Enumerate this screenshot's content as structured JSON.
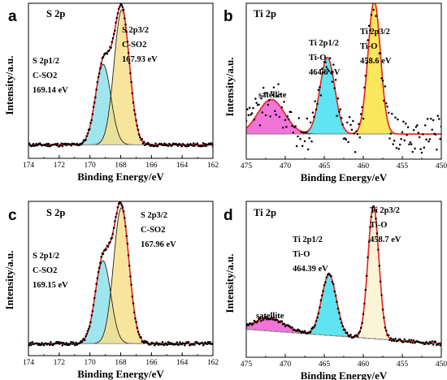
{
  "chart_data": [
    {
      "panel": "a",
      "type": "line",
      "title": "S 2p",
      "xlabel": "Binding Energy/eV",
      "ylabel": "Intensity/a.u.",
      "x_reversed": true,
      "xlim": [
        174,
        162
      ],
      "xticks": [
        "174",
        "172",
        "170",
        "168",
        "166",
        "164",
        "162"
      ],
      "background": 0.06,
      "peaks": [
        {
          "name": "S 2p1/2",
          "center": 169.14,
          "height": 0.56,
          "width": 0.5,
          "fill": "#8ee0ea",
          "labels": [
            "S 2p1/2",
            "C-SO2",
            "169.14 eV"
          ]
        },
        {
          "name": "S 2p3/2",
          "center": 167.93,
          "height": 0.94,
          "width": 0.5,
          "fill": "#f6e08c",
          "labels": [
            "S 2p3/2",
            "C-SO2",
            "167.93 eV"
          ]
        }
      ],
      "noise": 0.012
    },
    {
      "panel": "b",
      "type": "line",
      "title": "Ti 2p",
      "xlabel": "Binding Energy/eV",
      "ylabel": "Intensity/a.u.",
      "x_reversed": true,
      "xlim": [
        475,
        450
      ],
      "xticks": [
        "475",
        "470",
        "465",
        "460",
        "455",
        "450"
      ],
      "background": 0.14,
      "peaks": [
        {
          "name": "satellite",
          "center": 471.8,
          "height": 0.24,
          "width": 1.7,
          "fill": "#ee5cd2",
          "labels": [
            "satellite"
          ]
        },
        {
          "name": "Ti 2p1/2",
          "center": 464.6,
          "height": 0.53,
          "width": 0.95,
          "fill": "#43dff0",
          "labels": [
            "Ti 2p1/2",
            "Ti-O",
            "464.6 eV"
          ]
        },
        {
          "name": "Ti 2p3/2",
          "center": 458.6,
          "height": 0.92,
          "width": 0.8,
          "fill": "#f9e33f",
          "labels": [
            "Ti 2p3/2",
            "Ti-O",
            "458.6 eV"
          ]
        }
      ],
      "noise": 0.12
    },
    {
      "panel": "c",
      "type": "line",
      "title": "S 2p",
      "xlabel": "Binding Energy/eV",
      "ylabel": "Intensity/a.u.",
      "x_reversed": true,
      "xlim": [
        174,
        162
      ],
      "xticks": [
        "174",
        "172",
        "170",
        "168",
        "166",
        "164",
        "162"
      ],
      "background": 0.05,
      "peaks": [
        {
          "name": "S 2p1/2",
          "center": 169.15,
          "height": 0.58,
          "width": 0.5,
          "fill": "#8ee0ea",
          "labels": [
            "S 2p1/2",
            "C-SO2",
            "169.15 eV"
          ]
        },
        {
          "name": "S 2p3/2",
          "center": 167.96,
          "height": 0.95,
          "width": 0.5,
          "fill": "#f6e08c",
          "labels": [
            "S 2p3/2",
            "C-SO2",
            "167.96 eV"
          ]
        }
      ],
      "noise": 0.012
    },
    {
      "panel": "d",
      "type": "line",
      "title": "Ti 2p",
      "xlabel": "Binding Energy/eV",
      "ylabel": "Intensity/a.u.",
      "x_reversed": true,
      "xlim": [
        475,
        450
      ],
      "xticks": [
        "475",
        "470",
        "465",
        "460",
        "455",
        "450"
      ],
      "background": 0.08,
      "peaks": [
        {
          "name": "satellite",
          "center": 472.0,
          "height": 0.09,
          "width": 1.9,
          "fill": "#ee5cd2",
          "labels": [
            "satellite"
          ]
        },
        {
          "name": "Ti 2p1/2",
          "center": 464.39,
          "height": 0.42,
          "width": 0.95,
          "fill": "#43dff0",
          "labels": [
            "Ti 2p1/2",
            "Ti-O",
            "464.39 eV"
          ]
        },
        {
          "name": "Ti 2p3/2",
          "center": 458.7,
          "height": 0.92,
          "width": 0.7,
          "fill": "#fbf2cf",
          "labels": [
            "Ti 2p3/2",
            "Ti-O",
            "458.7 eV"
          ]
        }
      ],
      "noise": 0.012
    }
  ]
}
